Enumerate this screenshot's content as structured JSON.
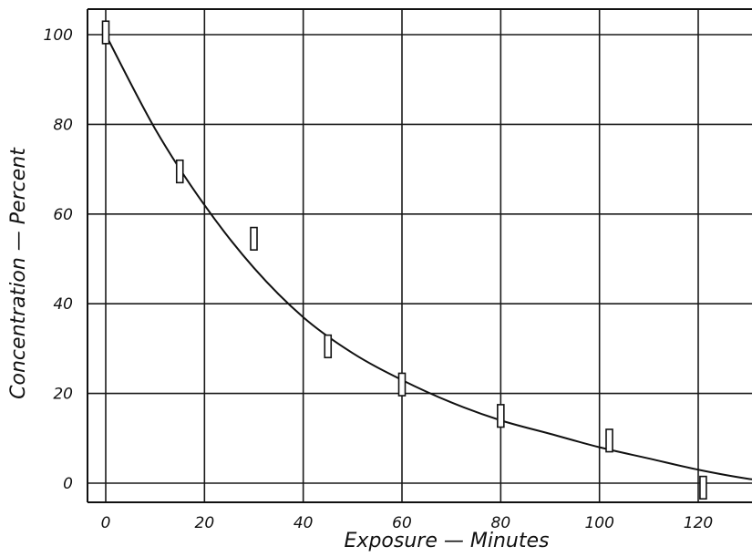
{
  "chart_data": {
    "type": "scatter",
    "xlabel": "Exposure — Minutes",
    "ylabel": "Concentration — Percent",
    "xlim": [
      0,
      135
    ],
    "ylim": [
      -4,
      105
    ],
    "x_ticks": [
      0,
      20,
      40,
      60,
      80,
      100,
      120
    ],
    "y_ticks": [
      0,
      20,
      40,
      60,
      80,
      100
    ],
    "x_tick_labels": [
      "0",
      "20",
      "40",
      "60",
      "80",
      "100",
      "120"
    ],
    "y_tick_labels": [
      "0",
      "20",
      "40",
      "60",
      "80",
      "100"
    ],
    "grid": true,
    "measurements": [
      {
        "x": 0,
        "low": 98,
        "high": 103
      },
      {
        "x": 15,
        "low": 67,
        "high": 72
      },
      {
        "x": 30,
        "low": 52,
        "high": 57
      },
      {
        "x": 45,
        "low": 28,
        "high": 33
      },
      {
        "x": 60,
        "low": 19.5,
        "high": 24.5
      },
      {
        "x": 80,
        "low": 12.5,
        "high": 17.5
      },
      {
        "x": 102,
        "low": 7,
        "high": 12
      },
      {
        "x": 121,
        "low": -3.5,
        "high": 1.5
      }
    ],
    "fit_curve": [
      {
        "x": 0,
        "y": 100
      },
      {
        "x": 10,
        "y": 79
      },
      {
        "x": 20,
        "y": 62
      },
      {
        "x": 30,
        "y": 48
      },
      {
        "x": 40,
        "y": 37
      },
      {
        "x": 50,
        "y": 29
      },
      {
        "x": 60,
        "y": 23
      },
      {
        "x": 70,
        "y": 18
      },
      {
        "x": 80,
        "y": 14
      },
      {
        "x": 90,
        "y": 11
      },
      {
        "x": 100,
        "y": 8
      },
      {
        "x": 110,
        "y": 5.5
      },
      {
        "x": 120,
        "y": 3
      },
      {
        "x": 130,
        "y": 1
      },
      {
        "x": 135,
        "y": 0.5
      }
    ]
  }
}
